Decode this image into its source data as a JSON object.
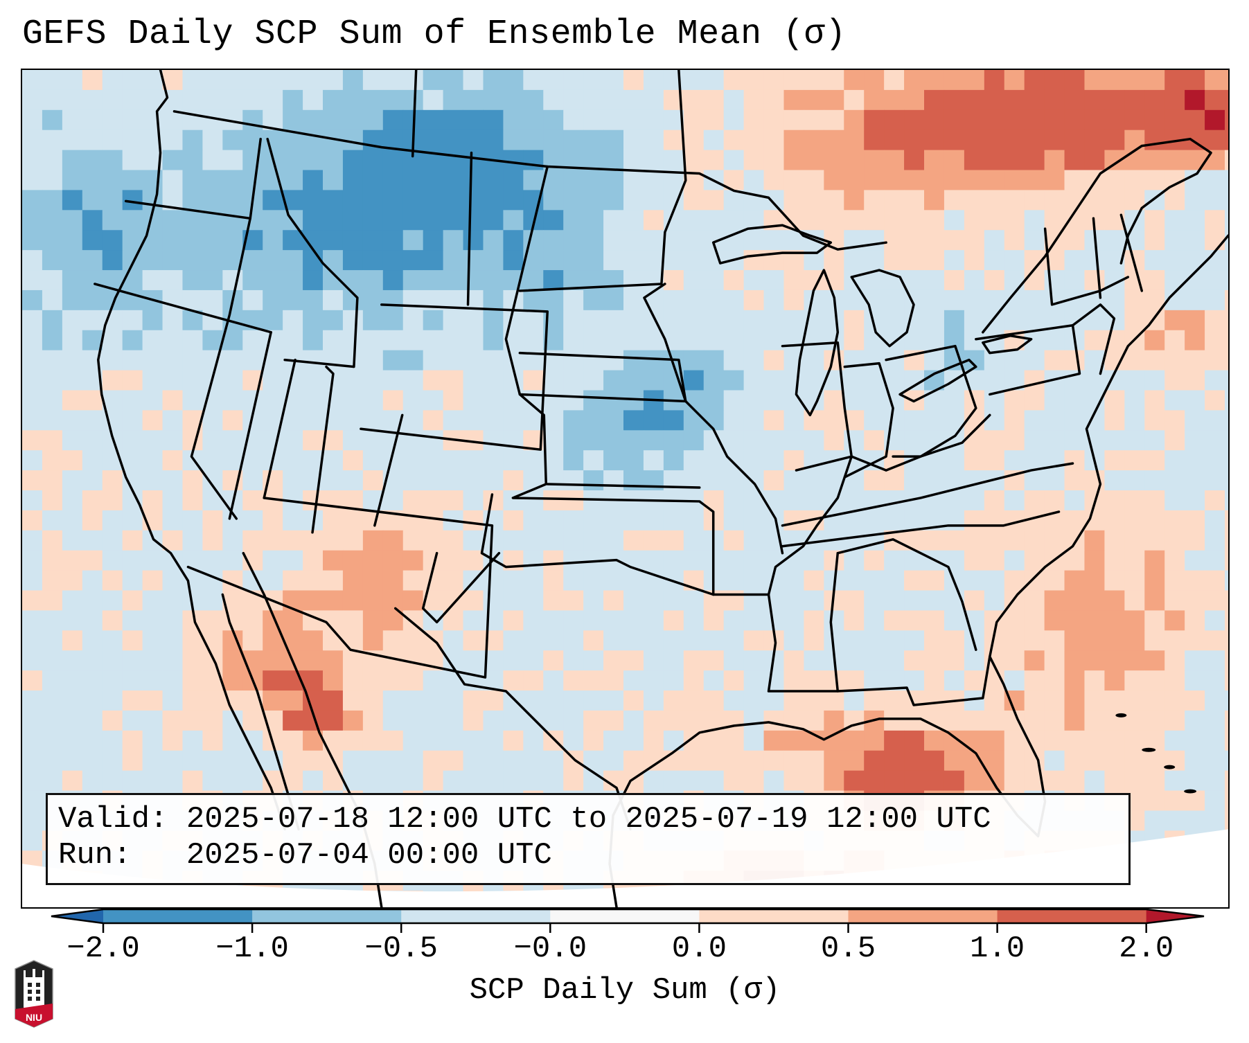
{
  "title": "GEFS Daily SCP Sum of Ensemble Mean (σ)",
  "info_box": {
    "valid_label": "Valid:",
    "valid_value": "2025-07-18 12:00 UTC to 2025-07-19 12:00 UTC",
    "run_label": "Run:",
    "run_value": "2025-07-04 00:00 UTC"
  },
  "colorbar": {
    "label": "SCP Daily Sum (σ)",
    "ticks": [
      "−2.0",
      "−1.0",
      "−0.5",
      "−0.0",
      "0.0",
      "0.5",
      "1.0",
      "2.0"
    ],
    "bins": [
      {
        "range": "< -2.0",
        "color": "#2166ac"
      },
      {
        "range": "-2.0 to -1.0",
        "color": "#4393c3"
      },
      {
        "range": "-1.0 to -0.5",
        "color": "#92c5de"
      },
      {
        "range": "-0.5 to -0.0",
        "color": "#d1e5f0"
      },
      {
        "range": "-0.0 to 0.0",
        "color": "#f7f7f7"
      },
      {
        "range": "0.0 to 0.5",
        "color": "#fddbc7"
      },
      {
        "range": "0.5 to 1.0",
        "color": "#f4a582"
      },
      {
        "range": "1.0 to 2.0",
        "color": "#d6604d"
      },
      {
        "range": "> 2.0",
        "color": "#b2182b"
      }
    ],
    "extend": "both"
  },
  "logo": {
    "text": "NIU",
    "name": "Northern Illinois University"
  },
  "chart_data": {
    "type": "heatmap",
    "title": "GEFS Daily SCP Sum of Ensemble Mean (σ)",
    "colorbar_label": "SCP Daily Sum (σ)",
    "levels": [
      -2.0,
      -1.0,
      -0.5,
      -0.0,
      0.0,
      0.5,
      1.0,
      2.0
    ],
    "region": "Continental United States, southern Canada, northern Mexico, Gulf of Mexico, western Caribbean",
    "valid": "2025-07-18 12:00 UTC to 2025-07-19 12:00 UTC",
    "run": "2025-07-04 00:00 UTC",
    "pattern_summary": [
      {
        "area": "Pacific Northwest / Idaho / Montana / Wyoming",
        "category": "-1.0 to -0.5"
      },
      {
        "area": "Iowa / Minnesota / Missouri / Kansas",
        "category": "-1.0 to -0.5"
      },
      {
        "area": "Most of CONUS interior",
        "category": "-0.5 to -0.0"
      },
      {
        "area": "Southern Ontario / Quebec",
        "category": "0.5 to 1.0"
      },
      {
        "area": "Gulf of St. Lawrence / Gaspe",
        "category": "> 2.0"
      },
      {
        "area": "Arizona / New Mexico",
        "category": "0.0 to 1.0"
      },
      {
        "area": "Baja California / Gulf of California",
        "category": "0.5 to 1.0"
      },
      {
        "area": "Gulf of Mexico",
        "category": "0.0 to 0.5"
      },
      {
        "area": "SW Florida / eastern Gulf",
        "category": "1.0 to 2.0"
      },
      {
        "area": "Western Atlantic off Southeast coast",
        "category": "0.5 to 1.0"
      },
      {
        "area": "Cuba / western Caribbean",
        "category": "0.5 to 2.0"
      }
    ]
  }
}
